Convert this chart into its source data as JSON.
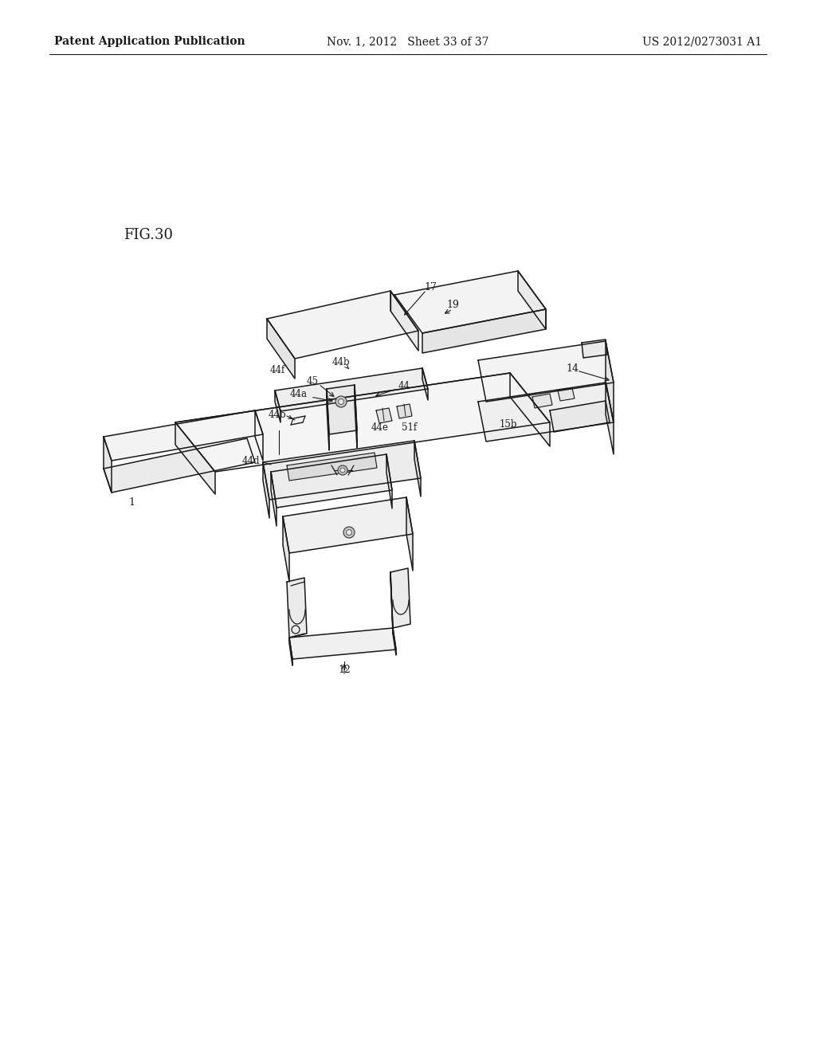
{
  "background_color": "#ffffff",
  "header_left": "Patent Application Publication",
  "header_mid": "Nov. 1, 2012   Sheet 33 of 37",
  "header_right": "US 2012/0273031 A1",
  "fig_label": "FIG.30",
  "line_color": "#1a1a1a",
  "text_color": "#1a1a1a",
  "header_font_size": 10,
  "fig_label_font_size": 13
}
